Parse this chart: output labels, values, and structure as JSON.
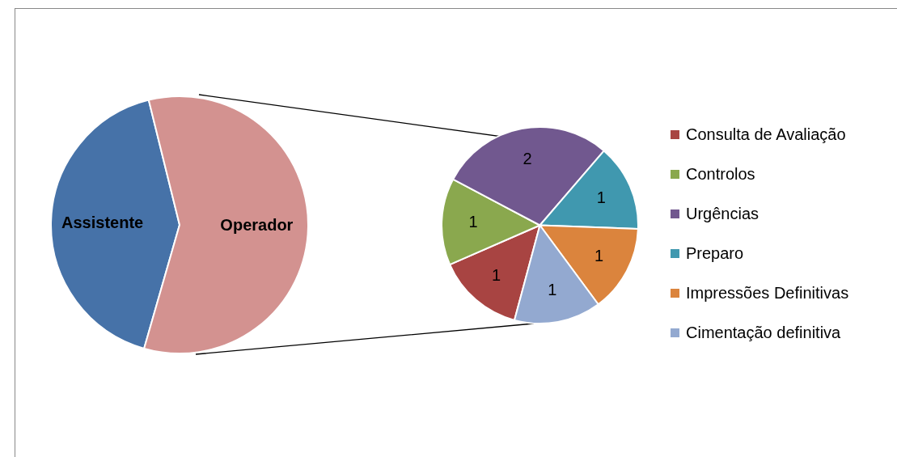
{
  "chart_data": [
    {
      "type": "pie",
      "categories": [
        "Assistente",
        "Operador"
      ],
      "values": [
        41.7,
        58.3
      ],
      "colors": [
        "#4672a8",
        "#d39290"
      ],
      "legend": false
    },
    {
      "type": "pie",
      "categories": [
        "Consulta de Avaliação",
        "Controlos",
        "Urgências",
        "Preparo",
        "Impressões Definitivas",
        "Cimentação definitiva"
      ],
      "values": [
        1,
        1,
        2,
        1,
        1,
        1
      ],
      "colors": [
        "#a84442",
        "#8aa84e",
        "#71588f",
        "#4098af",
        "#db843d",
        "#93a9d0"
      ],
      "data_labels": true,
      "legend": "right"
    }
  ]
}
